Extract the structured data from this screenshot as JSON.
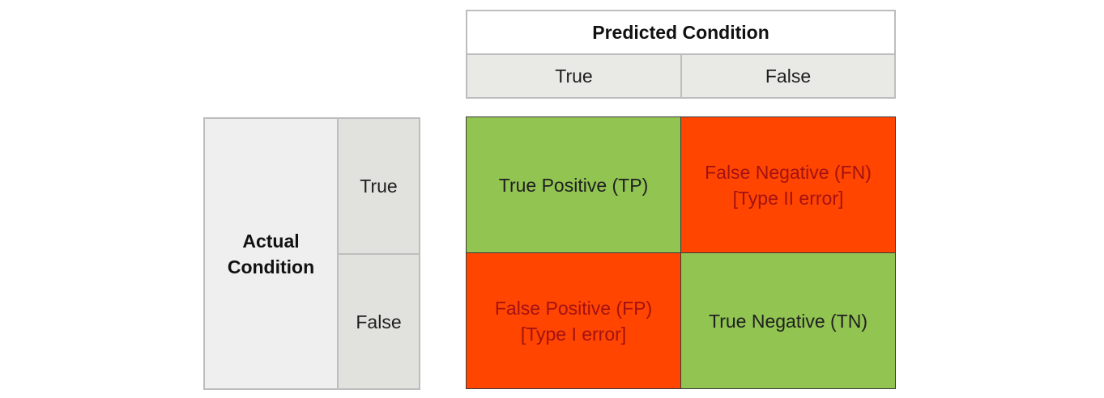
{
  "predicted": {
    "title": "Predicted Condition",
    "true_label": "True",
    "false_label": "False"
  },
  "actual": {
    "title_line1": "Actual",
    "title_line2": "Condition",
    "true_label": "True",
    "false_label": "False"
  },
  "matrix": {
    "tp": {
      "line1": "True Positive (TP)",
      "color": "#92c452",
      "text_color": "#1f1f1f"
    },
    "fn": {
      "line1": "False Negative (FN)",
      "line2": "[Type II error]",
      "color": "#ff4500",
      "text_color": "#a31212"
    },
    "fp": {
      "line1": "False Positive (FP)",
      "line2": "[Type I error]",
      "color": "#ff4500",
      "text_color": "#a31212"
    },
    "tn": {
      "line1": "True Negative (TN)",
      "color": "#92c452",
      "text_color": "#1f1f1f"
    }
  }
}
